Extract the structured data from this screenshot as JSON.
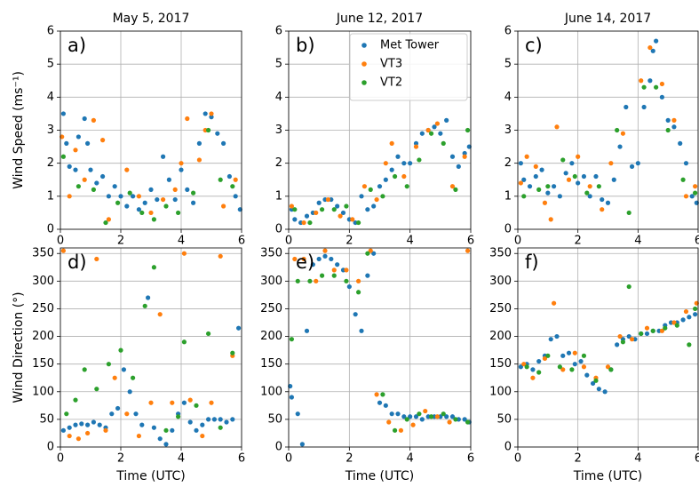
{
  "chart_data": [
    {
      "type": "scatter",
      "title": "May 5, 2017",
      "annotation": "a)",
      "ylabel": "Wind Speed (ms⁻¹)",
      "xlim": [
        0,
        6
      ],
      "xticks": [
        0,
        2,
        4,
        6
      ],
      "ylim": [
        0,
        6
      ],
      "yticks": [
        0,
        1,
        2,
        3,
        4,
        5,
        6
      ],
      "grid": true,
      "series": [
        {
          "color": "#1f77b4",
          "x": [
            0.1,
            0.2,
            0.3,
            0.5,
            0.6,
            0.8,
            0.9,
            1.0,
            1.2,
            1.4,
            1.6,
            1.8,
            2.0,
            2.2,
            2.4,
            2.6,
            2.8,
            3.0,
            3.2,
            3.4,
            3.6,
            3.8,
            4.0,
            4.2,
            4.4,
            4.6,
            4.8,
            5.0,
            5.2,
            5.4,
            5.6,
            5.8,
            5.95
          ],
          "y": [
            3.5,
            2.6,
            1.9,
            1.8,
            2.8,
            3.35,
            2.6,
            1.8,
            1.4,
            1.6,
            1.0,
            1.3,
            1.0,
            0.7,
            1.0,
            0.6,
            0.8,
            1.2,
            0.9,
            2.2,
            1.5,
            0.9,
            1.8,
            1.2,
            0.8,
            2.6,
            3.5,
            3.4,
            2.9,
            2.6,
            1.6,
            1.0,
            0.6
          ]
        },
        {
          "color": "#ff7f0e",
          "x": [
            0.05,
            0.3,
            0.5,
            0.8,
            1.1,
            1.4,
            1.6,
            2.2,
            2.6,
            3.0,
            3.4,
            3.8,
            4.0,
            4.2,
            4.6,
            4.8,
            5.0,
            5.4,
            5.8
          ],
          "y": [
            2.8,
            1.0,
            2.4,
            1.5,
            3.3,
            2.7,
            0.3,
            1.8,
            1.0,
            0.5,
            0.9,
            1.2,
            2.0,
            3.35,
            2.1,
            3.0,
            3.5,
            0.7,
            1.5
          ]
        },
        {
          "color": "#2ca02c",
          "x": [
            0.1,
            0.6,
            1.1,
            1.5,
            1.9,
            2.3,
            2.7,
            3.1,
            3.5,
            3.9,
            4.4,
            4.9,
            5.3,
            5.7
          ],
          "y": [
            2.2,
            1.3,
            1.2,
            0.2,
            0.8,
            1.1,
            0.5,
            0.3,
            0.7,
            0.5,
            1.1,
            3.0,
            1.5,
            1.3
          ]
        }
      ]
    },
    {
      "type": "scatter",
      "title": "June 12, 2017",
      "annotation": "b)",
      "xlim": [
        0,
        6
      ],
      "xticks": [
        0,
        2,
        4,
        6
      ],
      "ylim": [
        0,
        6
      ],
      "yticks": [
        0,
        1,
        2,
        3,
        4,
        5,
        6
      ],
      "grid": true,
      "legend": "upper right",
      "series": [
        {
          "name": "Met Tower",
          "color": "#1f77b4",
          "x": [
            0.1,
            0.2,
            0.4,
            0.6,
            0.8,
            1.0,
            1.2,
            1.4,
            1.6,
            1.8,
            2.0,
            2.2,
            2.4,
            2.6,
            2.8,
            3.0,
            3.2,
            3.4,
            3.6,
            3.8,
            4.0,
            4.2,
            4.4,
            4.6,
            4.8,
            5.0,
            5.2,
            5.4,
            5.6,
            5.8,
            5.95
          ],
          "y": [
            0.6,
            0.3,
            0.2,
            0.4,
            0.5,
            0.8,
            0.9,
            0.9,
            0.7,
            0.5,
            0.3,
            0.2,
            1.0,
            0.6,
            0.7,
            1.3,
            1.5,
            1.8,
            2.2,
            2.0,
            2.0,
            2.6,
            2.9,
            3.0,
            3.1,
            2.9,
            3.3,
            2.2,
            1.9,
            2.3,
            2.5
          ]
        },
        {
          "name": "VT3",
          "color": "#ff7f0e",
          "x": [
            0.1,
            0.5,
            0.9,
            1.3,
            1.7,
            2.1,
            2.5,
            2.9,
            3.2,
            3.4,
            3.8,
            4.2,
            4.6,
            4.9,
            5.4,
            5.8
          ],
          "y": [
            0.7,
            0.2,
            0.5,
            0.9,
            0.4,
            0.3,
            1.3,
            0.9,
            2.0,
            2.6,
            1.6,
            2.5,
            3.0,
            3.2,
            1.3,
            2.2
          ]
        },
        {
          "name": "VT2",
          "color": "#2ca02c",
          "x": [
            0.2,
            0.7,
            1.1,
            1.5,
            1.9,
            2.3,
            2.7,
            3.1,
            3.5,
            3.9,
            4.3,
            4.7,
            5.1,
            5.5,
            5.9
          ],
          "y": [
            0.6,
            0.2,
            0.6,
            0.6,
            0.7,
            0.2,
            1.2,
            1.0,
            1.6,
            1.3,
            2.1,
            2.9,
            2.6,
            1.2,
            3.0
          ]
        }
      ]
    },
    {
      "type": "scatter",
      "title": "June 14, 2017",
      "annotation": "c)",
      "xlim": [
        0,
        6
      ],
      "xticks": [
        0,
        2,
        4,
        6
      ],
      "ylim": [
        0,
        6
      ],
      "yticks": [
        0,
        1,
        2,
        3,
        4,
        5,
        6
      ],
      "grid": true,
      "series": [
        {
          "color": "#1f77b4",
          "x": [
            0.1,
            0.2,
            0.4,
            0.6,
            0.8,
            1.0,
            1.2,
            1.4,
            1.6,
            1.8,
            2.0,
            2.2,
            2.4,
            2.6,
            2.8,
            3.0,
            3.2,
            3.4,
            3.6,
            3.8,
            4.0,
            4.2,
            4.4,
            4.5,
            4.6,
            4.8,
            5.0,
            5.2,
            5.4,
            5.6,
            5.8,
            5.95
          ],
          "y": [
            2.0,
            1.5,
            1.3,
            1.6,
            1.8,
            1.1,
            1.3,
            1.0,
            1.7,
            2.0,
            1.4,
            1.6,
            1.0,
            1.6,
            0.9,
            0.8,
            1.5,
            2.5,
            3.7,
            1.9,
            2.0,
            3.7,
            4.5,
            5.4,
            5.7,
            4.0,
            3.3,
            3.1,
            2.6,
            2.0,
            1.0,
            0.8
          ]
        },
        {
          "color": "#ff7f0e",
          "x": [
            0.1,
            0.3,
            0.6,
            0.9,
            1.1,
            1.3,
            1.7,
            2.0,
            2.4,
            2.8,
            3.1,
            3.5,
            4.1,
            4.4,
            4.8,
            5.2,
            5.6,
            5.9
          ],
          "y": [
            1.4,
            2.2,
            1.9,
            0.8,
            0.3,
            3.1,
            1.5,
            2.2,
            1.3,
            0.6,
            2.0,
            2.9,
            4.5,
            5.5,
            4.4,
            3.3,
            1.0,
            1.3
          ]
        },
        {
          "color": "#2ca02c",
          "x": [
            0.2,
            0.7,
            1.0,
            1.5,
            1.9,
            2.3,
            2.7,
            3.3,
            3.7,
            4.2,
            4.6,
            5.0,
            5.5,
            5.9
          ],
          "y": [
            1.0,
            1.2,
            1.3,
            2.1,
            1.6,
            1.1,
            1.3,
            3.0,
            0.5,
            4.3,
            4.3,
            3.0,
            1.5,
            1.1
          ]
        }
      ]
    },
    {
      "type": "scatter",
      "annotation": "d)",
      "xlabel": "Time (UTC)",
      "ylabel": "Wind Direction (°)",
      "xlim": [
        0,
        6
      ],
      "xticks": [
        0,
        2,
        4,
        6
      ],
      "ylim": [
        0,
        360
      ],
      "yticks": [
        0,
        50,
        100,
        150,
        200,
        250,
        300,
        350
      ],
      "grid": true,
      "series": [
        {
          "color": "#1f77b4",
          "x": [
            0.1,
            0.3,
            0.5,
            0.7,
            0.9,
            1.1,
            1.3,
            1.5,
            1.7,
            1.9,
            2.1,
            2.3,
            2.5,
            2.7,
            2.9,
            3.1,
            3.3,
            3.5,
            3.7,
            3.9,
            4.1,
            4.3,
            4.5,
            4.7,
            4.9,
            5.1,
            5.3,
            5.5,
            5.7,
            5.9
          ],
          "y": [
            30,
            35,
            40,
            42,
            40,
            45,
            40,
            35,
            60,
            70,
            140,
            100,
            60,
            40,
            270,
            35,
            15,
            5,
            30,
            60,
            80,
            45,
            30,
            40,
            50,
            50,
            50,
            45,
            50,
            215
          ]
        },
        {
          "color": "#ff7f0e",
          "x": [
            0.1,
            0.3,
            0.6,
            0.9,
            1.2,
            1.5,
            1.8,
            2.2,
            2.6,
            3.0,
            3.3,
            3.7,
            4.1,
            4.3,
            4.7,
            5.0,
            5.3,
            5.7
          ],
          "y": [
            355,
            20,
            15,
            25,
            340,
            30,
            125,
            60,
            20,
            80,
            240,
            80,
            350,
            85,
            20,
            80,
            345,
            165
          ]
        },
        {
          "color": "#2ca02c",
          "x": [
            0.2,
            0.5,
            0.8,
            1.2,
            1.6,
            2.0,
            2.4,
            2.8,
            3.1,
            3.5,
            3.9,
            4.1,
            4.5,
            4.9,
            5.3,
            5.7
          ],
          "y": [
            60,
            85,
            140,
            105,
            150,
            175,
            125,
            255,
            325,
            30,
            55,
            190,
            75,
            205,
            35,
            170
          ]
        }
      ]
    },
    {
      "type": "scatter",
      "annotation": "e)",
      "xlabel": "Time (UTC)",
      "xlim": [
        0,
        6
      ],
      "xticks": [
        0,
        2,
        4,
        6
      ],
      "ylim": [
        0,
        360
      ],
      "yticks": [
        0,
        50,
        100,
        150,
        200,
        250,
        300,
        350
      ],
      "grid": true,
      "series": [
        {
          "color": "#1f77b4",
          "x": [
            0.05,
            0.1,
            0.3,
            0.45,
            0.6,
            0.8,
            1.0,
            1.2,
            1.4,
            1.6,
            1.8,
            2.0,
            2.2,
            2.4,
            2.6,
            2.8,
            3.0,
            3.2,
            3.4,
            3.6,
            3.8,
            4.0,
            4.2,
            4.4,
            4.6,
            4.8,
            5.0,
            5.2,
            5.4,
            5.6,
            5.8,
            5.95
          ],
          "y": [
            110,
            90,
            60,
            5,
            210,
            330,
            340,
            345,
            340,
            330,
            320,
            290,
            240,
            210,
            310,
            350,
            80,
            75,
            60,
            60,
            55,
            55,
            55,
            50,
            55,
            55,
            55,
            55,
            55,
            50,
            50,
            45
          ]
        },
        {
          "color": "#ff7f0e",
          "x": [
            0.2,
            0.5,
            0.9,
            1.2,
            1.5,
            1.9,
            2.3,
            2.7,
            2.9,
            3.3,
            3.7,
            4.1,
            4.5,
            4.9,
            5.3,
            5.9
          ],
          "y": [
            340,
            340,
            300,
            355,
            320,
            320,
            300,
            355,
            95,
            45,
            30,
            40,
            65,
            55,
            45,
            355
          ]
        },
        {
          "color": "#2ca02c",
          "x": [
            0.1,
            0.3,
            0.7,
            1.1,
            1.5,
            1.9,
            2.3,
            2.6,
            3.1,
            3.5,
            3.9,
            4.3,
            4.7,
            5.1,
            5.5,
            5.9
          ],
          "y": [
            195,
            300,
            300,
            310,
            310,
            300,
            280,
            350,
            95,
            30,
            50,
            60,
            55,
            60,
            50,
            45
          ]
        }
      ]
    },
    {
      "type": "scatter",
      "annotation": "f)",
      "xlabel": "Time (UTC)",
      "xlim": [
        0,
        6
      ],
      "xticks": [
        0,
        2,
        4,
        6
      ],
      "ylim": [
        0,
        360
      ],
      "yticks": [
        0,
        50,
        100,
        150,
        200,
        250,
        300,
        350
      ],
      "grid": true,
      "series": [
        {
          "color": "#1f77b4",
          "x": [
            0.1,
            0.3,
            0.5,
            0.7,
            0.9,
            1.1,
            1.3,
            1.5,
            1.7,
            1.9,
            2.1,
            2.3,
            2.5,
            2.7,
            2.9,
            3.1,
            3.3,
            3.5,
            3.7,
            3.9,
            4.1,
            4.3,
            4.5,
            4.7,
            4.9,
            5.1,
            5.3,
            5.5,
            5.7,
            5.9
          ],
          "y": [
            145,
            150,
            140,
            155,
            165,
            195,
            200,
            165,
            170,
            150,
            155,
            130,
            115,
            105,
            100,
            140,
            185,
            195,
            200,
            195,
            205,
            205,
            210,
            210,
            220,
            225,
            225,
            230,
            235,
            240
          ]
        },
        {
          "color": "#ff7f0e",
          "x": [
            0.2,
            0.5,
            0.9,
            1.2,
            1.5,
            1.9,
            2.2,
            2.6,
            3.0,
            3.4,
            3.8,
            4.3,
            4.8,
            5.2,
            5.6,
            5.95
          ],
          "y": [
            150,
            125,
            160,
            260,
            140,
            170,
            145,
            125,
            145,
            200,
            195,
            215,
            210,
            225,
            245,
            260
          ]
        },
        {
          "color": "#2ca02c",
          "x": [
            0.3,
            0.7,
            1.0,
            1.4,
            1.8,
            2.2,
            2.6,
            3.1,
            3.5,
            3.7,
            4.1,
            4.5,
            4.9,
            5.3,
            5.7,
            5.9
          ],
          "y": [
            145,
            135,
            165,
            145,
            140,
            165,
            120,
            140,
            190,
            290,
            205,
            210,
            215,
            220,
            185,
            250
          ]
        }
      ]
    }
  ]
}
